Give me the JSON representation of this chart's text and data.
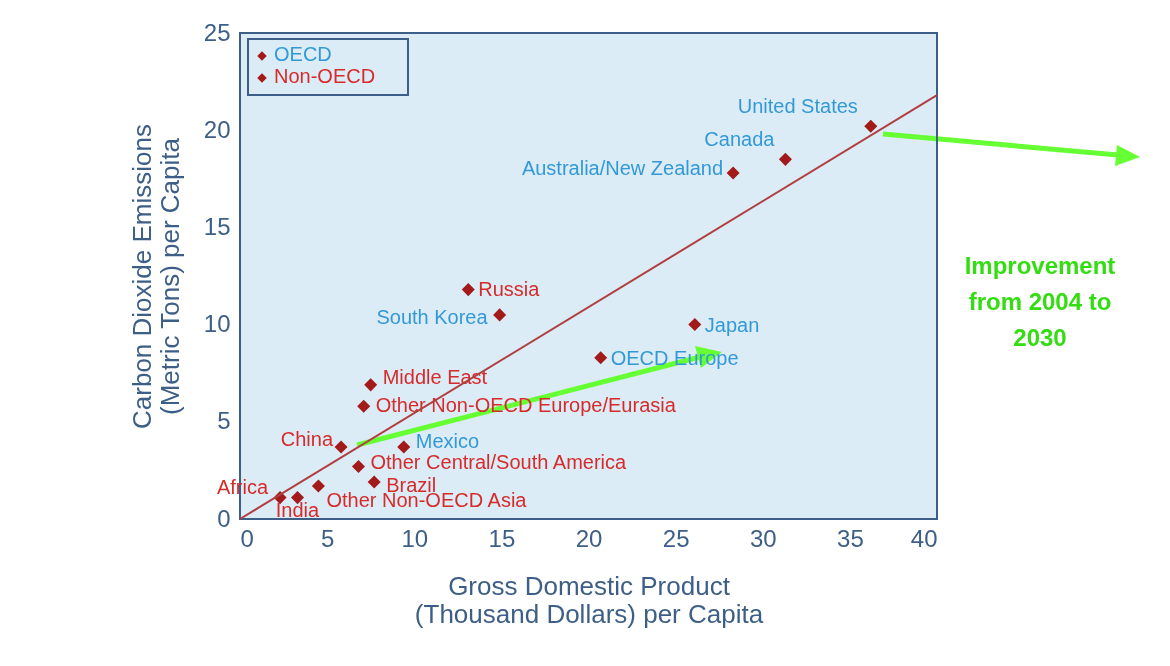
{
  "chart_data": {
    "type": "scatter",
    "xlabel": "Gross Domestic Product\n(Thousand Dollars) per Capita",
    "ylabel": "Carbon Dioxide Emissions\n(Metric Tons) per Capita",
    "xlim": [
      0,
      40
    ],
    "xticks": [
      0,
      5,
      10,
      15,
      20,
      25,
      30,
      35,
      40
    ],
    "ylim": [
      0,
      25
    ],
    "yticks": [
      0,
      5,
      10,
      15,
      20,
      25
    ],
    "grid": false,
    "legend": "top left",
    "annotations": [
      "Improvement\nfrom 2004 to\n2030"
    ],
    "series": [
      {
        "name": "OECD",
        "color": "#a31a1a",
        "marker": "diamond",
        "x": [
          36.2,
          31.3,
          28.3,
          14.9,
          26.1,
          20.7,
          9.4
        ],
        "values": [
          20.2,
          18.5,
          17.8,
          10.5,
          10.0,
          8.3,
          3.7
        ],
        "value_labels": [
          "United States",
          "Canada",
          "Australia/New Zealand",
          "South Korea",
          "Japan",
          "OECD Europe",
          "Mexico"
        ]
      },
      {
        "name": "Non-OECD",
        "color": "#a31a1a",
        "marker": "diamond",
        "x": [
          13.1,
          7.5,
          7.1,
          5.8,
          6.8,
          7.7,
          4.5,
          3.3,
          2.3
        ],
        "values": [
          11.8,
          6.9,
          5.8,
          3.7,
          2.7,
          1.9,
          1.7,
          1.1,
          1.1
        ],
        "value_labels": [
          "Russia",
          "Middle East",
          "Other Non-OECD Europe/Eurasia",
          "China",
          "Other Central/South America",
          "Brazil",
          "Other Non-OECD Asia",
          "India",
          "Africa"
        ]
      },
      {
        "type": "line",
        "color": "#b04040",
        "x": [
          0,
          40
        ],
        "values": [
          0,
          21.8
        ]
      }
    ]
  }
}
